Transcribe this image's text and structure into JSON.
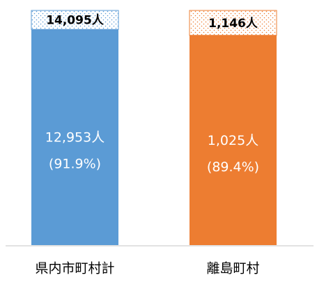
{
  "chart_data": {
    "type": "bar",
    "stacked": true,
    "categories": [
      "県内市町村計",
      "離島町村"
    ],
    "colors": [
      "#5b9bd5",
      "#ed7d31"
    ],
    "ylim": [
      0,
      100
    ],
    "series": [
      {
        "values": [
          91.9,
          89.4
        ],
        "value_labels": [
          "(91.9%)",
          "(89.4%)"
        ],
        "count_labels": [
          "12,953人",
          "1,025人"
        ],
        "pattern": "solid"
      },
      {
        "values": [
          8.1,
          10.6
        ],
        "total_labels": [
          "14,095人",
          "1,146人"
        ],
        "pattern": "dots"
      }
    ]
  }
}
